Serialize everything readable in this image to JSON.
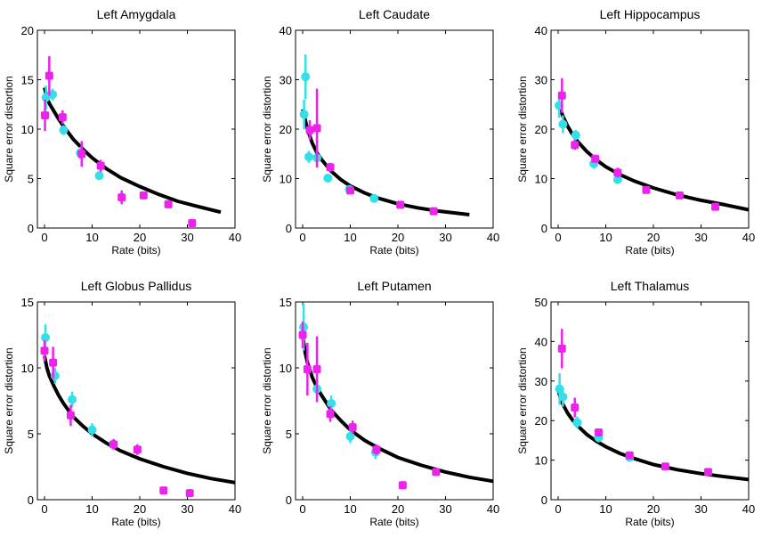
{
  "figure": {
    "colors": {
      "cyan": "#33e0e8",
      "magenta": "#ee22ee",
      "fit": "#000000"
    }
  },
  "chart_data": [
    {
      "type": "scatter",
      "title": "Left Amygdala",
      "xlabel": "Rate (bits)",
      "ylabel": "Square error distortion",
      "xlim": [
        0,
        40
      ],
      "ylim": [
        0,
        20
      ],
      "xticks": [
        0,
        10,
        20,
        30,
        40
      ],
      "yticks": [
        0,
        5,
        10,
        15,
        20
      ],
      "fit_curve": {
        "name": "fit",
        "x": [
          0,
          0.5,
          1,
          2,
          3,
          4,
          6,
          8,
          10,
          13,
          16,
          20,
          24,
          28,
          32,
          37
        ],
        "y": [
          14.2,
          13.2,
          12.6,
          11.8,
          11.0,
          10.3,
          9.0,
          8.0,
          7.1,
          6.0,
          5.1,
          4.2,
          3.4,
          2.7,
          2.2,
          1.6
        ]
      },
      "series": [
        {
          "name": "cyan",
          "points": [
            {
              "x": 0.3,
              "y": 13.2,
              "err": 1.2
            },
            {
              "x": 1.7,
              "y": 13.5,
              "err": 0.6
            },
            {
              "x": 4.0,
              "y": 9.9,
              "err": 0.5
            },
            {
              "x": 7.5,
              "y": 7.6,
              "err": 0.6
            },
            {
              "x": 11.5,
              "y": 5.3,
              "err": 0.4
            }
          ]
        },
        {
          "name": "magenta",
          "points": [
            {
              "x": 0.1,
              "y": 11.4,
              "err": 1.6
            },
            {
              "x": 1.0,
              "y": 15.4,
              "err": 2.0
            },
            {
              "x": 3.8,
              "y": 11.2,
              "err": 0.7
            },
            {
              "x": 7.8,
              "y": 7.5,
              "err": 1.3
            },
            {
              "x": 11.8,
              "y": 6.3,
              "err": 0.6
            },
            {
              "x": 16.2,
              "y": 3.1,
              "err": 0.7
            },
            {
              "x": 20.8,
              "y": 3.3,
              "err": 0.4
            },
            {
              "x": 26.0,
              "y": 2.4,
              "err": 0.4
            },
            {
              "x": 31.0,
              "y": 0.5,
              "err": 0.3
            }
          ]
        }
      ]
    },
    {
      "type": "scatter",
      "title": "Left Caudate",
      "xlabel": "Rate (bits)",
      "ylabel": "Square error distortion",
      "xlim": [
        0,
        40
      ],
      "ylim": [
        0,
        40
      ],
      "xticks": [
        0,
        10,
        20,
        30,
        40
      ],
      "yticks": [
        0,
        10,
        20,
        30,
        40
      ],
      "fit_curve": {
        "name": "fit",
        "x": [
          0,
          0.5,
          1,
          2,
          3,
          4,
          6,
          8,
          10,
          13,
          16,
          20,
          24,
          28,
          35
        ],
        "y": [
          24.0,
          22.0,
          20.0,
          17.2,
          15.2,
          13.8,
          11.5,
          9.8,
          8.5,
          7.1,
          6.0,
          4.9,
          4.1,
          3.5,
          2.7
        ]
      },
      "series": [
        {
          "name": "cyan",
          "points": [
            {
              "x": 0.3,
              "y": 23.0,
              "err": 3.0
            },
            {
              "x": 0.6,
              "y": 30.6,
              "err": 4.5
            },
            {
              "x": 1.3,
              "y": 14.4,
              "err": 1.2
            },
            {
              "x": 3.0,
              "y": 14.2,
              "err": 1.5
            },
            {
              "x": 5.3,
              "y": 10.1,
              "err": 0.8
            },
            {
              "x": 9.8,
              "y": 7.8,
              "err": 0.6
            },
            {
              "x": 15.0,
              "y": 6.0,
              "err": 0.7
            }
          ]
        },
        {
          "name": "magenta",
          "points": [
            {
              "x": 1.5,
              "y": 19.8,
              "err": 2.0
            },
            {
              "x": 3.0,
              "y": 20.2,
              "err": 8.0
            },
            {
              "x": 5.8,
              "y": 12.3,
              "err": 0.9
            },
            {
              "x": 10.0,
              "y": 7.6,
              "err": 0.5
            },
            {
              "x": 20.5,
              "y": 4.7,
              "err": 0.5
            },
            {
              "x": 27.5,
              "y": 3.4,
              "err": 0.4
            }
          ]
        }
      ]
    },
    {
      "type": "scatter",
      "title": "Left Hippocampus",
      "xlabel": "Rate (bits)",
      "ylabel": "Square error distortion",
      "xlim": [
        0,
        40
      ],
      "ylim": [
        0,
        40
      ],
      "xticks": [
        0,
        10,
        20,
        30,
        40
      ],
      "yticks": [
        0,
        10,
        20,
        30,
        40
      ],
      "fit_curve": {
        "name": "fit",
        "x": [
          0,
          0.5,
          1,
          2,
          3,
          4,
          6,
          8,
          10,
          13,
          16,
          20,
          25,
          30,
          35,
          40
        ],
        "y": [
          25.5,
          24.0,
          22.6,
          20.6,
          19.0,
          17.6,
          15.5,
          13.8,
          12.4,
          10.8,
          9.5,
          8.1,
          6.7,
          5.6,
          4.7,
          3.7
        ]
      },
      "series": [
        {
          "name": "cyan",
          "points": [
            {
              "x": 0.2,
              "y": 24.8,
              "err": 2.5
            },
            {
              "x": 1.0,
              "y": 21.0,
              "err": 1.8
            },
            {
              "x": 3.7,
              "y": 18.8,
              "err": 1.0
            },
            {
              "x": 7.5,
              "y": 13.0,
              "err": 1.0
            },
            {
              "x": 12.5,
              "y": 9.8,
              "err": 0.6
            }
          ]
        },
        {
          "name": "magenta",
          "points": [
            {
              "x": 0.8,
              "y": 26.8,
              "err": 3.5
            },
            {
              "x": 3.5,
              "y": 16.8,
              "err": 1.0
            },
            {
              "x": 7.8,
              "y": 14.0,
              "err": 0.8
            },
            {
              "x": 12.5,
              "y": 11.2,
              "err": 1.0
            },
            {
              "x": 18.5,
              "y": 7.7,
              "err": 0.5
            },
            {
              "x": 25.5,
              "y": 6.6,
              "err": 0.5
            },
            {
              "x": 33.0,
              "y": 4.3,
              "err": 0.4
            }
          ]
        }
      ]
    },
    {
      "type": "scatter",
      "title": "Left Globus Pallidus",
      "xlabel": "Rate (bits)",
      "ylabel": "Square error distortion",
      "xlim": [
        0,
        40
      ],
      "ylim": [
        0,
        15
      ],
      "xticks": [
        0,
        10,
        20,
        30,
        40
      ],
      "yticks": [
        0,
        5,
        10,
        15
      ],
      "fit_curve": {
        "name": "fit",
        "x": [
          0,
          0.5,
          1,
          2,
          3,
          4,
          6,
          8,
          10,
          13,
          16,
          20,
          25,
          30,
          35,
          40
        ],
        "y": [
          10.9,
          10.0,
          9.4,
          8.6,
          7.9,
          7.3,
          6.3,
          5.6,
          5.0,
          4.3,
          3.7,
          3.1,
          2.5,
          2.0,
          1.6,
          1.3
        ]
      },
      "series": [
        {
          "name": "cyan",
          "points": [
            {
              "x": 0.2,
              "y": 12.3,
              "err": 1.0
            },
            {
              "x": 2.2,
              "y": 9.4,
              "err": 0.6
            },
            {
              "x": 5.8,
              "y": 7.6,
              "err": 0.6
            },
            {
              "x": 10.0,
              "y": 5.3,
              "err": 0.5
            },
            {
              "x": 14.5,
              "y": 4.2,
              "err": 0.4
            }
          ]
        },
        {
          "name": "magenta",
          "points": [
            {
              "x": 0.0,
              "y": 11.3,
              "err": 0.8
            },
            {
              "x": 1.8,
              "y": 10.4,
              "err": 1.2
            },
            {
              "x": 5.5,
              "y": 6.4,
              "err": 0.8
            },
            {
              "x": 14.5,
              "y": 4.2,
              "err": 0.4
            },
            {
              "x": 19.5,
              "y": 3.8,
              "err": 0.4
            },
            {
              "x": 25.0,
              "y": 0.7,
              "err": 0.2
            },
            {
              "x": 30.5,
              "y": 0.5,
              "err": 0.3
            }
          ]
        }
      ]
    },
    {
      "type": "scatter",
      "title": "Left Putamen",
      "xlabel": "Rate (bits)",
      "ylabel": "Square error distortion",
      "xlim": [
        0,
        40
      ],
      "ylim": [
        0,
        15
      ],
      "xticks": [
        0,
        10,
        20,
        30,
        40
      ],
      "yticks": [
        0,
        5,
        10,
        15
      ],
      "fit_curve": {
        "name": "fit",
        "x": [
          0,
          0.5,
          1,
          2,
          3,
          4,
          6,
          8,
          10,
          13,
          16,
          20,
          25,
          30,
          35,
          40
        ],
        "y": [
          12.5,
          11.2,
          10.4,
          9.3,
          8.5,
          7.9,
          6.8,
          6.0,
          5.3,
          4.5,
          3.9,
          3.2,
          2.6,
          2.1,
          1.7,
          1.4
        ]
      },
      "series": [
        {
          "name": "cyan",
          "points": [
            {
              "x": 0.2,
              "y": 13.1,
              "err": 1.8
            },
            {
              "x": 3.0,
              "y": 8.4,
              "err": 0.6
            },
            {
              "x": 6.0,
              "y": 7.3,
              "err": 0.6
            },
            {
              "x": 10.0,
              "y": 4.8,
              "err": 0.5
            },
            {
              "x": 15.3,
              "y": 3.6,
              "err": 0.5
            }
          ]
        },
        {
          "name": "magenta",
          "points": [
            {
              "x": 0.0,
              "y": 12.5,
              "err": 1.0
            },
            {
              "x": 1.0,
              "y": 9.9,
              "err": 2.0
            },
            {
              "x": 3.0,
              "y": 9.9,
              "err": 2.5
            },
            {
              "x": 5.8,
              "y": 6.5,
              "err": 0.6
            },
            {
              "x": 10.5,
              "y": 5.5,
              "err": 0.5
            },
            {
              "x": 15.5,
              "y": 3.8,
              "err": 0.4
            },
            {
              "x": 21.0,
              "y": 1.1,
              "err": 0.3
            },
            {
              "x": 28.0,
              "y": 2.1,
              "err": 0.3
            }
          ]
        }
      ]
    },
    {
      "type": "scatter",
      "title": "Left Thalamus",
      "xlabel": "Rate (bits)",
      "ylabel": "Square error distortion",
      "xlim": [
        0,
        40
      ],
      "ylim": [
        0,
        50
      ],
      "xticks": [
        0,
        10,
        20,
        30,
        40
      ],
      "yticks": [
        0,
        10,
        20,
        30,
        40,
        50
      ],
      "fit_curve": {
        "name": "fit",
        "x": [
          0,
          0.5,
          1,
          2,
          3,
          4,
          6,
          8,
          10,
          13,
          16,
          20,
          25,
          30,
          35,
          40
        ],
        "y": [
          27.8,
          25.6,
          24.1,
          21.9,
          20.2,
          18.8,
          16.5,
          14.8,
          13.4,
          11.7,
          10.4,
          8.9,
          7.6,
          6.6,
          5.8,
          5.1
        ]
      },
      "series": [
        {
          "name": "cyan",
          "points": [
            {
              "x": 0.3,
              "y": 28.0,
              "err": 4.0
            },
            {
              "x": 1.0,
              "y": 26.0,
              "err": 2.5
            },
            {
              "x": 4.0,
              "y": 19.5,
              "err": 1.5
            },
            {
              "x": 8.5,
              "y": 15.7,
              "err": 1.2
            },
            {
              "x": 15.0,
              "y": 10.7,
              "err": 1.0
            }
          ]
        },
        {
          "name": "magenta",
          "points": [
            {
              "x": 0.8,
              "y": 38.2,
              "err": 5.0
            },
            {
              "x": 3.5,
              "y": 23.3,
              "err": 2.5
            },
            {
              "x": 8.5,
              "y": 17.0,
              "err": 1.0
            },
            {
              "x": 15.0,
              "y": 11.2,
              "err": 0.8
            },
            {
              "x": 22.5,
              "y": 8.4,
              "err": 0.6
            },
            {
              "x": 31.5,
              "y": 7.0,
              "err": 0.6
            }
          ]
        }
      ]
    }
  ]
}
